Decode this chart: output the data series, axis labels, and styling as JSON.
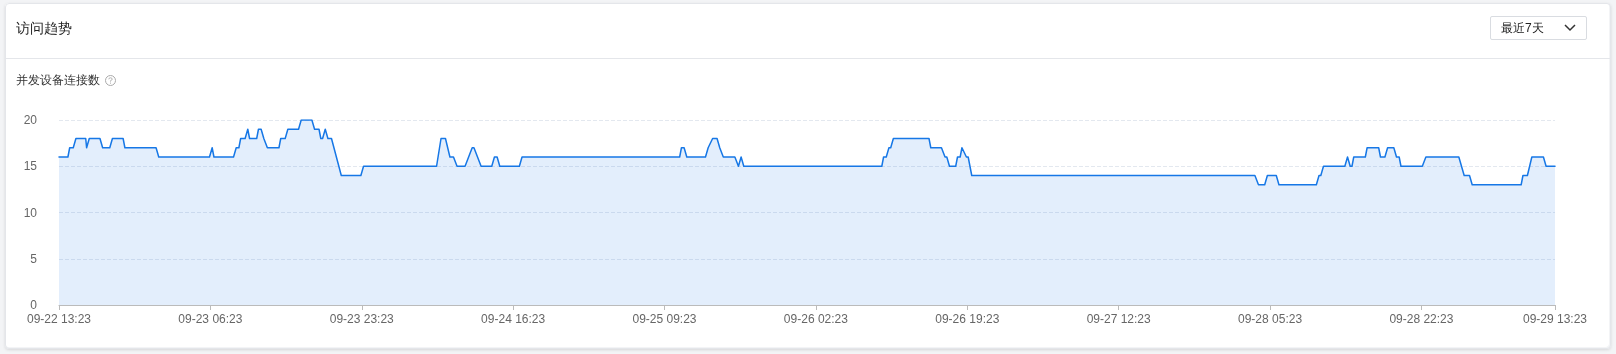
{
  "chart_data": {
    "type": "area",
    "title": "访问趋势",
    "subtitle": "并发设备连接数",
    "annotations": [
      "最近7天"
    ],
    "xlim": [
      "--09-22T13:23",
      "--09-29T13:23"
    ],
    "xticks": [
      {
        "value": "--09-22T13:23",
        "label": "09-22 13:23"
      },
      {
        "value": "--09-23T06:23",
        "label": "09-23 06:23"
      },
      {
        "value": "--09-23T23:23",
        "label": "09-23 23:23"
      },
      {
        "value": "--09-24T16:23",
        "label": "09-24 16:23"
      },
      {
        "value": "--09-25T09:23",
        "label": "09-25 09:23"
      },
      {
        "value": "--09-26T02:23",
        "label": "09-26 02:23"
      },
      {
        "value": "--09-26T19:23",
        "label": "09-26 19:23"
      },
      {
        "value": "--09-27T12:23",
        "label": "09-27 12:23"
      },
      {
        "value": "--09-28T05:23",
        "label": "09-28 05:23"
      },
      {
        "value": "--09-28T22:23",
        "label": "09-28 22:23"
      },
      {
        "value": "--09-29T13:23",
        "label": "09-29 13:23"
      }
    ],
    "ylim": [
      0,
      20
    ],
    "yticks": [
      0,
      5,
      10,
      15,
      20
    ],
    "grid": "y",
    "marker": "none",
    "series": [
      {
        "color": "#1677e6",
        "x": [
          "--09-22T13:23",
          "--09-22T14:23",
          "--09-22T14:35",
          "--09-22T14:59",
          "--09-22T15:17",
          "--09-22T16:23",
          "--09-22T16:29",
          "--09-22T16:47",
          "--09-22T17:59",
          "--09-22T18:17",
          "--09-22T19:05",
          "--09-22T19:23",
          "--09-22T20:35",
          "--09-22T20:47",
          "--09-23T00:17",
          "--09-23T00:35",
          "--09-23T06:17",
          "--09-23T06:35",
          "--09-23T06:47",
          "--09-23T08:59",
          "--09-23T09:17",
          "--09-23T09:35",
          "--09-23T09:47",
          "--09-23T10:17",
          "--09-23T10:35",
          "--09-23T10:47",
          "--09-23T11:35",
          "--09-23T11:47",
          "--09-23T12:05",
          "--09-23T12:23",
          "--09-23T12:47",
          "--09-23T14:05",
          "--09-23T14:17",
          "--09-23T14:47",
          "--09-23T15:05",
          "--09-23T16:17",
          "--09-23T16:35",
          "--09-23T17:47",
          "--09-23T18:05",
          "--09-23T18:35",
          "--09-23T18:47",
          "--09-23T18:59",
          "--09-23T19:17",
          "--09-23T19:35",
          "--09-23T19:59",
          "--09-23T21:05",
          "--09-23T23:17",
          "--09-23T23:35",
          "--09-24T07:47",
          "--09-24T08:17",
          "--09-24T08:47",
          "--09-24T09:17",
          "--09-24T09:41",
          "--09-24T10:05",
          "--09-24T10:59",
          "--09-24T11:23",
          "--09-24T11:47",
          "--09-24T11:59",
          "--09-24T12:23",
          "--09-24T12:47",
          "--09-24T13:59",
          "--09-24T14:17",
          "--09-24T14:35",
          "--09-24T14:53",
          "--09-24T17:05",
          "--09-24T17:23",
          "--09-25T11:05",
          "--09-25T11:17",
          "--09-25T11:35",
          "--09-25T11:53",
          "--09-25T13:59",
          "--09-25T14:17",
          "--09-25T14:47",
          "--09-25T15:17",
          "--09-25T15:35",
          "--09-25T15:59",
          "--09-25T17:17",
          "--09-25T17:41",
          "--09-25T17:59",
          "--09-25T18:17",
          "--09-26T09:47",
          "--09-26T09:59",
          "--09-26T10:17",
          "--09-26T10:35",
          "--09-26T10:47",
          "--09-26T11:05",
          "--09-26T15:05",
          "--09-26T15:17",
          "--09-26T16:29",
          "--09-26T16:53",
          "--09-26T17:05",
          "--09-26T17:23",
          "--09-26T18:05",
          "--09-26T18:17",
          "--09-26T18:35",
          "--09-26T18:47",
          "--09-26T19:17",
          "--09-26T19:29",
          "--09-26T19:41",
          "--09-26T19:53",
          "--09-28T03:41",
          "--09-28T04:05",
          "--09-28T04:47",
          "--09-28T05:05",
          "--09-28T06:05",
          "--09-28T06:23",
          "--09-28T10:35",
          "--09-28T10:53",
          "--09-28T11:05",
          "--09-28T11:23",
          "--09-28T13:47",
          "--09-28T14:05",
          "--09-28T14:23",
          "--09-28T14:35",
          "--09-28T14:47",
          "--09-28T16:05",
          "--09-28T16:17",
          "--09-28T17:35",
          "--09-28T17:47",
          "--09-28T18:17",
          "--09-28T18:35",
          "--09-28T19:17",
          "--09-28T19:35",
          "--09-28T19:53",
          "--09-28T20:05",
          "--09-28T22:29",
          "--09-28T22:53",
          "--09-29T02:35",
          "--09-29T03:11",
          "--09-29T03:47",
          "--09-29T04:05",
          "--09-29T09:35",
          "--09-29T09:47",
          "--09-29T10:17",
          "--09-29T10:47",
          "--09-29T12:05",
          "--09-29T12:23",
          "--09-29T13:23"
        ],
        "values": [
          16,
          16,
          17,
          17,
          18,
          18,
          17,
          18,
          18,
          17,
          17,
          18,
          18,
          17,
          17,
          16,
          16,
          17,
          16,
          16,
          17,
          17,
          18,
          18,
          19,
          18,
          18,
          19,
          19,
          18,
          17,
          17,
          18,
          18,
          19,
          19,
          20,
          20,
          19,
          19,
          18,
          18,
          19,
          18,
          18,
          14,
          14,
          15,
          15,
          18,
          18,
          16,
          16,
          15,
          15,
          16,
          17,
          17,
          16,
          15,
          15,
          16,
          16,
          15,
          15,
          16,
          16,
          17,
          17,
          16,
          16,
          17,
          18,
          18,
          17,
          16,
          16,
          15,
          16,
          15,
          15,
          16,
          16,
          17,
          17,
          18,
          18,
          17,
          17,
          16,
          16,
          15,
          15,
          16,
          16,
          17,
          16,
          16,
          15,
          14,
          14,
          13,
          13,
          14,
          14,
          13,
          13,
          14,
          14,
          15,
          15,
          16,
          15,
          15,
          16,
          16,
          17,
          17,
          16,
          16,
          17,
          17,
          16,
          16,
          15,
          15,
          16,
          16,
          14,
          14,
          13,
          13,
          14,
          14,
          16,
          16,
          15,
          15
        ]
      }
    ]
  }
}
